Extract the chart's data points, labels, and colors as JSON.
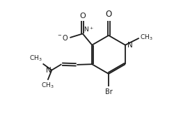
{
  "bg_color": "#ffffff",
  "line_color": "#1a1a1a",
  "line_width": 1.3,
  "font_size": 7.0,
  "figsize": [
    2.5,
    1.78
  ],
  "dpi": 100,
  "xlim": [
    -0.32,
    1.08
  ],
  "ylim": [
    -0.2,
    1.05
  ]
}
